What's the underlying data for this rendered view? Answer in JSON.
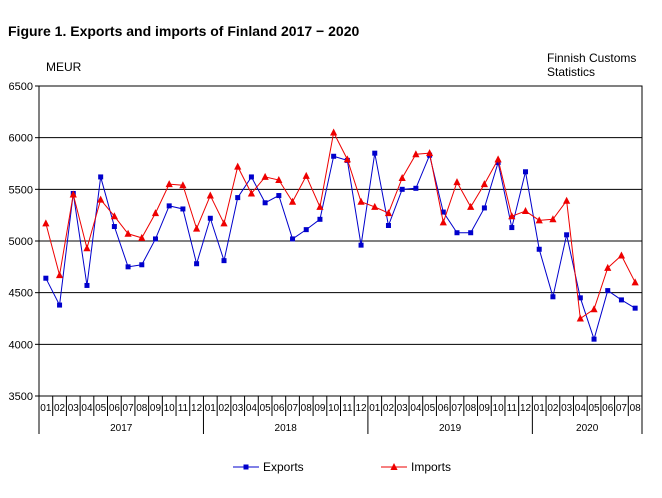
{
  "title": "Figure 1. Exports and imports of Finland 2017 − 2020",
  "unit_label": "MEUR",
  "source": [
    "Finnish Customs",
    "Statistics"
  ],
  "chart_data": {
    "type": "line",
    "title": "Figure 1. Exports and imports of Finland 2017 − 2020",
    "ylabel": "MEUR",
    "ylim": [
      3500,
      6500
    ],
    "yticks": [
      3500,
      4000,
      4500,
      5000,
      5500,
      6000,
      6500
    ],
    "grid": true,
    "legend_position": "bottom",
    "months": [
      "01",
      "02",
      "03",
      "04",
      "05",
      "06",
      "07",
      "08",
      "09",
      "10",
      "11",
      "12",
      "01",
      "02",
      "03",
      "04",
      "05",
      "06",
      "07",
      "08",
      "09",
      "10",
      "11",
      "12",
      "01",
      "02",
      "03",
      "04",
      "05",
      "06",
      "07",
      "08",
      "09",
      "10",
      "11",
      "12",
      "01",
      "02",
      "03",
      "04",
      "05",
      "06",
      "07",
      "08"
    ],
    "years": [
      {
        "label": "2017",
        "months": 12
      },
      {
        "label": "2018",
        "months": 12
      },
      {
        "label": "2019",
        "months": 12
      },
      {
        "label": "2020",
        "months": 8
      }
    ],
    "series": [
      {
        "name": "Exports",
        "color": "#0000cc",
        "marker": "square",
        "values": [
          4640,
          4380,
          5460,
          4570,
          5620,
          5140,
          4750,
          4770,
          5020,
          5340,
          5310,
          4780,
          5220,
          4810,
          5420,
          5620,
          5370,
          5440,
          5020,
          5110,
          5210,
          5820,
          5780,
          4960,
          5850,
          5150,
          5500,
          5510,
          5830,
          5280,
          5080,
          5080,
          5320,
          5760,
          5130,
          5670,
          4920,
          4460,
          5060,
          4450,
          4050,
          4520,
          4430,
          4350
        ]
      },
      {
        "name": "Imports",
        "color": "#ee0000",
        "marker": "triangle",
        "values": [
          5170,
          4670,
          5450,
          4930,
          5400,
          5240,
          5070,
          5030,
          5270,
          5550,
          5540,
          5120,
          5440,
          5170,
          5720,
          5460,
          5620,
          5590,
          5380,
          5630,
          5330,
          6050,
          5790,
          5380,
          5330,
          5270,
          5610,
          5840,
          5850,
          5180,
          5570,
          5330,
          5550,
          5790,
          5240,
          5290,
          5200,
          5210,
          5390,
          4250,
          4340,
          4740,
          4860,
          4600
        ]
      }
    ]
  }
}
